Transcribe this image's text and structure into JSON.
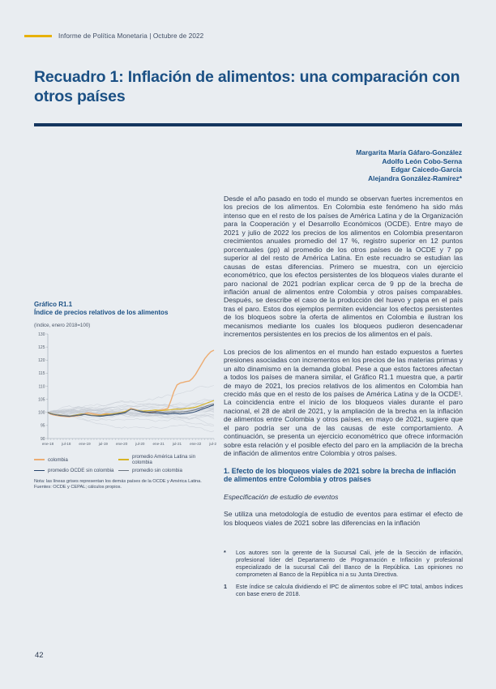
{
  "page": {
    "header": "Informe de Política Monetaria | Octubre de 2022",
    "title": "Recuadro 1: Inflación de alimentos: una comparación con otros países",
    "page_number": "42"
  },
  "colors": {
    "background": "#e9edf1",
    "heading_blue": "#1b5084",
    "rule_navy": "#15365f",
    "accent_yellow": "#e7b10a",
    "body_text": "#2c3a52"
  },
  "authors": [
    "Margarita María Gáfaro-González",
    "Adolfo León Cobo-Serna",
    "Edgar Caicedo-García",
    "Alejandra González-Ramírez*"
  ],
  "body": {
    "p1": "Desde el año pasado en todo el mundo se observan fuertes incrementos en los precios de los alimentos. En Colombia este fenómeno ha sido más intenso que en el resto de los países de América Latina y de la Organización para la Cooperación y el Desarrollo Económicos (OCDE). Entre mayo de 2021 y julio de 2022 los precios de los alimentos en Colombia presentaron crecimientos anuales promedio del 17 %, registro superior en 12 puntos porcentuales (pp) al promedio de los otros países de la OCDE y 7 pp superior al del resto de América Latina. En este recuadro se estudian las causas de estas diferencias. Primero se muestra, con un ejercicio econométrico, que los efectos persistentes de los bloqueos viales durante el paro nacional de 2021 podrían explicar cerca de 9 pp de la brecha de inflación anual de alimentos entre Colombia y otros países comparables. Después, se describe el caso de la producción del huevo y papa en el país tras el paro. Estos dos ejemplos permiten evidenciar los efectos persistentes de los bloqueos sobre la oferta de alimentos en Colombia e ilustran los mecanismos mediante los cuales los bloqueos pudieron desencadenar incrementos persistentes en los precios de los alimentos en el país.",
    "p2": "Los precios de los alimentos en el mundo han estado expuestos a fuertes presiones asociadas con incrementos en los precios de las materias primas y un alto dinamismo en la demanda global. Pese a que estos factores afectan a todos los países de manera similar, el Gráfico R1.1 muestra que, a partir de mayo de 2021, los precios relativos de los alimentos en Colombia han crecido más que en el resto de los países de América Latina y de la OCDE¹. La coincidencia entre el inicio de los bloqueos viales durante el paro nacional, el 28 de abril de 2021, y la ampliación de la brecha en la inflación de alimentos entre Colombia y otros países, en mayo de 2021, sugiere que el paro podría ser una de las causas de este comportamiento. A continuación, se presenta un ejercicio econométrico que ofrece información sobre esta relación y el posible efecto del paro en la ampliación de la brecha de inflación de alimentos entre Colombia y otros países.",
    "section1_title": "1. Efecto de los bloqueos viales de 2021 sobre la brecha de inflación de alimentos entre Colombia y otros países",
    "subsection_italic": "Especificación de estudio de eventos",
    "p3": "Se utiliza una metodología de estudio de eventos para estimar el efecto de los bloqueos viales de 2021 sobre las diferencias en la inflación"
  },
  "figure": {
    "label": "Gráfico R1.1",
    "title": "Índice de precios relativos de los alimentos",
    "unit": "(índice, enero 2018=100)",
    "note": "Nota: las líneas grises representan los demás países de la OCDE y América Latina.",
    "sources": "Fuentes: OCDE y CEPAL; cálculos propios."
  },
  "chart_data": {
    "type": "line",
    "title": "Índice de precios relativos de los alimentos",
    "unit": "(índice, enero 2018=100)",
    "x_tick_labels": [
      "ene-18",
      "jul-18",
      "ene-19",
      "jul-19",
      "ene-20",
      "jul-20",
      "ene-21",
      "jul-21",
      "ene-22",
      "jul-22"
    ],
    "x_tick_interval_months": 6,
    "months_total": 55,
    "ylim": [
      90,
      130
    ],
    "y_ticks": [
      90,
      95,
      100,
      105,
      110,
      115,
      120,
      125,
      130
    ],
    "legend_position": "bottom",
    "background_lines": {
      "description": "líneas grises: demás países de la OCDE y América Latina",
      "color": "#c3c9d2",
      "count": 24
    },
    "series": [
      {
        "name": "colombia",
        "color": "#ecac72",
        "width": 1.4,
        "values": [
          100,
          99.3,
          99,
          98.8,
          98.6,
          98.5,
          98.4,
          98.3,
          98.5,
          98.6,
          98.8,
          99,
          99.5,
          99.8,
          99.6,
          99.4,
          99.2,
          99,
          99.3,
          99.5,
          99.4,
          99.3,
          99.5,
          99.8,
          100,
          100.2,
          100.8,
          101.5,
          101.2,
          100.8,
          100.5,
          100.2,
          100,
          99.8,
          100,
          100.3,
          100.8,
          101,
          101.2,
          101.5,
          104.5,
          108,
          110.5,
          111.2,
          111.5,
          111.8,
          112,
          113,
          114.5,
          116.5,
          118.5,
          120.5,
          122,
          123.2,
          123.8
        ]
      },
      {
        "name": "promedio América Latina sin colombia",
        "color": "#d8b424",
        "width": 1.1,
        "values": [
          100,
          99.6,
          99.3,
          99.1,
          99,
          98.8,
          98.7,
          98.6,
          98.8,
          99,
          99.2,
          99.4,
          99.3,
          99.2,
          99,
          98.9,
          98.8,
          98.9,
          99,
          99.2,
          99.3,
          99.4,
          99.6,
          99.8,
          100,
          100.3,
          100.8,
          101.2,
          101,
          100.8,
          100.6,
          100.5,
          100.6,
          100.7,
          100.8,
          100.9,
          100.8,
          100.7,
          100.8,
          100.9,
          101,
          101.2,
          101.3,
          101.2,
          101.3,
          101.5,
          101.6,
          101.8,
          102,
          102.4,
          102.8,
          103.2,
          103.7,
          104.1,
          104.5
        ]
      },
      {
        "name": "promedio OCDE sin colombia",
        "color": "#26436b",
        "width": 1.0,
        "values": [
          100,
          99.5,
          99.2,
          99,
          98.8,
          98.7,
          98.6,
          98.5,
          98.6,
          98.8,
          98.9,
          99,
          99.2,
          99,
          98.8,
          98.7,
          98.6,
          98.5,
          98.6,
          98.8,
          98.9,
          99,
          99.2,
          99.4,
          99.6,
          99.8,
          100.5,
          101.2,
          101,
          100.6,
          100.3,
          100.1,
          100,
          99.9,
          99.8,
          99.9,
          99.8,
          99.6,
          99.5,
          99.4,
          99.5,
          99.6,
          99.5,
          99.4,
          99.5,
          99.6,
          99.8,
          100,
          100.3,
          100.7,
          101.2,
          101.6,
          102,
          102.4,
          102.8
        ]
      },
      {
        "name": "promedio sin colombia",
        "color": "#6b7480",
        "width": 1.0,
        "values": [
          100,
          99.5,
          99.2,
          99,
          98.9,
          98.8,
          98.7,
          98.6,
          98.7,
          98.9,
          99,
          99.2,
          99.3,
          99.1,
          98.9,
          98.8,
          98.7,
          98.7,
          98.8,
          99,
          99.1,
          99.2,
          99.4,
          99.6,
          99.8,
          100,
          100.6,
          101.2,
          101,
          100.7,
          100.5,
          100.3,
          100.2,
          100.2,
          100.3,
          100.4,
          100.3,
          100.1,
          100,
          100,
          100.1,
          100.2,
          100.1,
          100.1,
          100.2,
          100.3,
          100.5,
          100.7,
          101,
          101.4,
          101.8,
          102.2,
          102.6,
          102.9,
          103.2
        ]
      }
    ]
  },
  "footnotes": [
    {
      "marker": "*",
      "text": "Los autores son la gerente de la Sucursal Cali, jefe de la Sección de inflación, profesional líder del Departamento de Programación e Inflación y profesional especializado de la sucursal Cali del Banco de la República. Las opiniones no comprometen al Banco de la República ni a su Junta Directiva."
    },
    {
      "marker": "1",
      "text": "Este índice se calcula dividiendo el IPC de alimentos sobre el IPC total, ambos índices con base enero de 2018."
    }
  ]
}
